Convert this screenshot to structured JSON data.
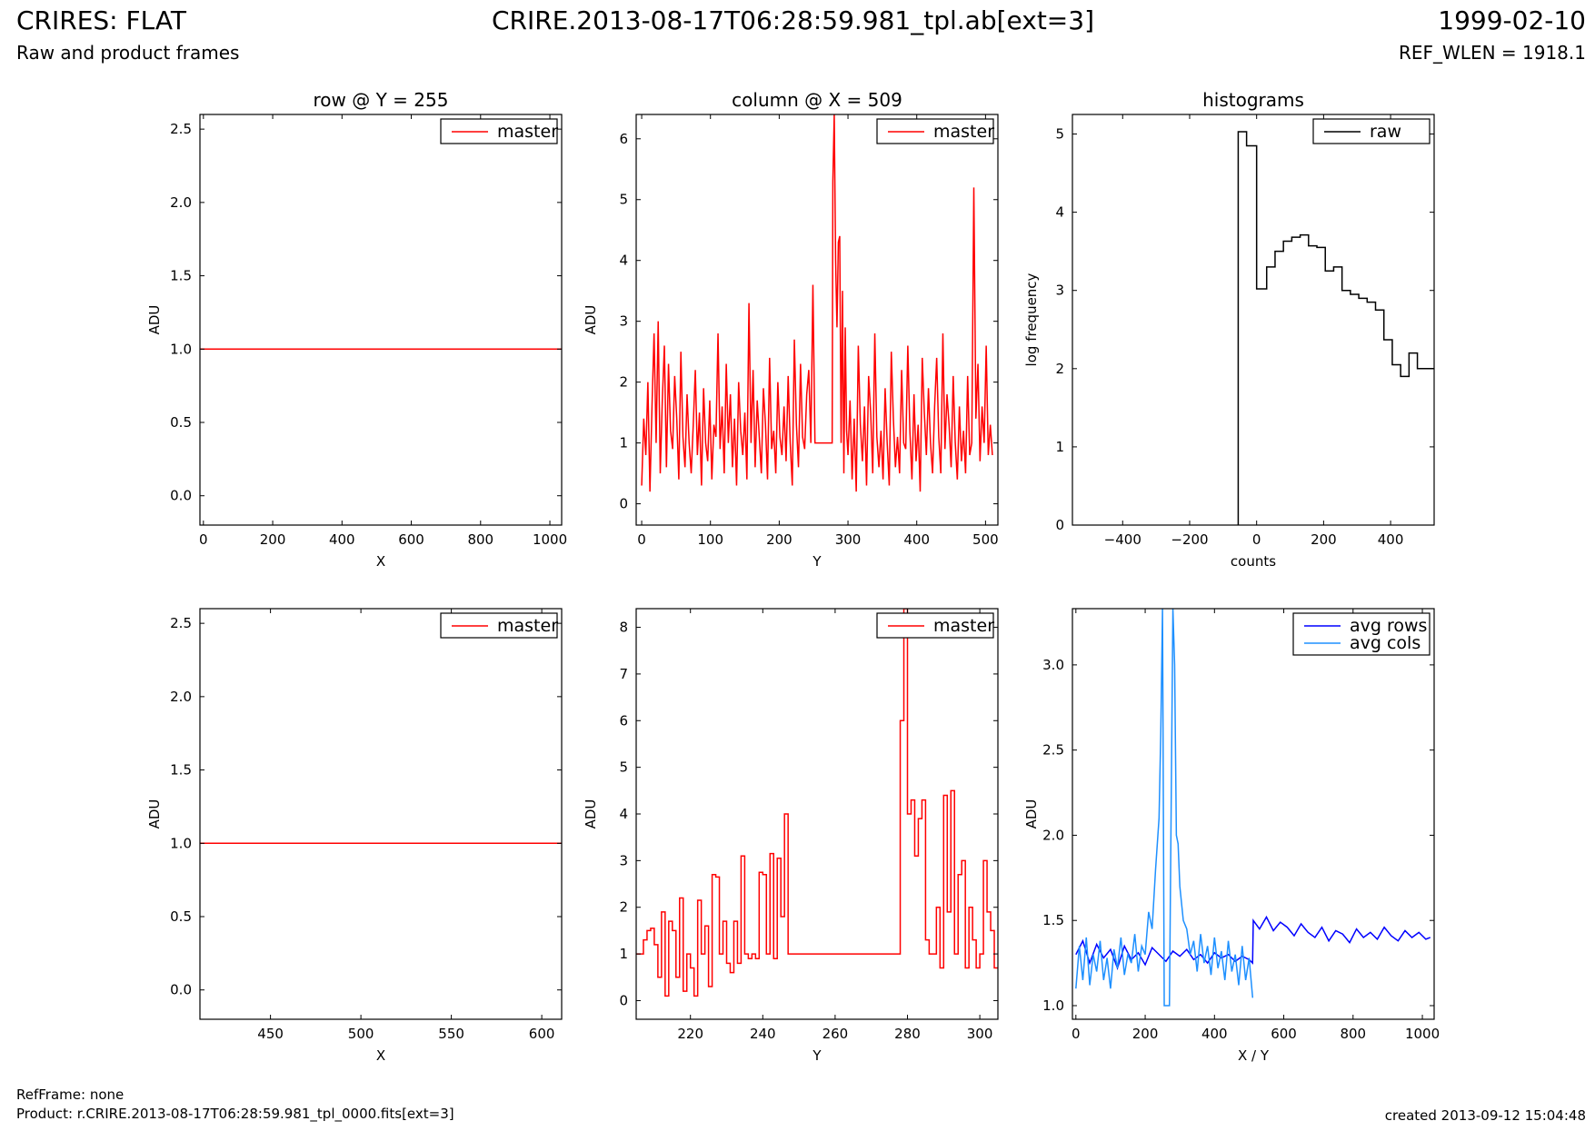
{
  "header": {
    "title": "CRIRES: FLAT",
    "subtitle": "Raw and product frames",
    "file": "CRIRE.2013-08-17T06:28:59.981_tpl.ab[ext=3]",
    "date": "1999-02-10",
    "ref_wlen": "REF_WLEN = 1918.1"
  },
  "footer": {
    "ref_frame": "RefFrame: none",
    "product": "Product: r.CRIRE.2013-08-17T06:28:59.981_tpl_0000.fits[ext=3]",
    "created": "created 2013-09-12 15:04:48"
  },
  "colors": {
    "master": "#ff0000",
    "raw": "#000000",
    "avg_rows": "#0000ff",
    "avg_cols": "#1e90ff"
  },
  "chart_data": [
    {
      "type": "line",
      "title": "row @ Y = 255",
      "xlabel": "X",
      "ylabel": "ADU",
      "xlim": [
        -10,
        1034
      ],
      "ylim": [
        -0.2,
        2.6
      ],
      "xticks": [
        0,
        200,
        400,
        600,
        800,
        1000
      ],
      "xticklabels": [
        "0",
        "200",
        "400",
        "600",
        "800",
        "1000"
      ],
      "yticks": [
        0.0,
        0.5,
        1.0,
        1.5,
        2.0,
        2.5
      ],
      "yticklabels": [
        "0.0",
        "0.5",
        "1.0",
        "1.5",
        "2.0",
        "2.5"
      ],
      "legend": "top-right",
      "series": [
        {
          "name": "master",
          "color": "#ff0000",
          "x": [
            -10,
            1034
          ],
          "y": [
            1.0,
            1.0
          ]
        }
      ]
    },
    {
      "type": "line",
      "title": "column @ X = 509",
      "xlabel": "Y",
      "ylabel": "ADU",
      "xlim": [
        -8,
        518
      ],
      "ylim": [
        -0.35,
        6.4
      ],
      "xticks": [
        0,
        100,
        200,
        300,
        400,
        500
      ],
      "xticklabels": [
        "0",
        "100",
        "200",
        "300",
        "400",
        "500"
      ],
      "yticks": [
        0,
        1,
        2,
        3,
        4,
        5,
        6
      ],
      "yticklabels": [
        "0",
        "1",
        "2",
        "3",
        "4",
        "5",
        "6"
      ],
      "legend": "top-right",
      "series": [
        {
          "name": "master",
          "color": "#ff0000",
          "x": [
            0,
            3,
            6,
            9,
            12,
            15,
            18,
            21,
            24,
            27,
            30,
            33,
            36,
            39,
            42,
            45,
            48,
            51,
            54,
            57,
            60,
            63,
            66,
            69,
            72,
            75,
            78,
            81,
            84,
            87,
            90,
            93,
            96,
            99,
            102,
            105,
            108,
            111,
            114,
            117,
            120,
            123,
            126,
            129,
            132,
            135,
            138,
            141,
            144,
            147,
            150,
            153,
            156,
            159,
            162,
            165,
            168,
            171,
            174,
            177,
            180,
            183,
            186,
            189,
            192,
            195,
            198,
            201,
            204,
            207,
            210,
            213,
            216,
            219,
            222,
            225,
            228,
            231,
            234,
            237,
            240,
            243,
            246,
            249,
            252,
            260,
            270,
            277,
            278,
            280,
            282,
            284,
            286,
            288,
            290,
            292,
            294,
            296,
            298,
            300,
            303,
            306,
            309,
            312,
            315,
            318,
            321,
            324,
            327,
            330,
            333,
            336,
            339,
            342,
            345,
            348,
            351,
            354,
            357,
            360,
            363,
            366,
            369,
            372,
            375,
            378,
            381,
            384,
            387,
            390,
            393,
            396,
            399,
            402,
            405,
            408,
            411,
            414,
            417,
            420,
            423,
            426,
            429,
            432,
            435,
            438,
            441,
            444,
            447,
            450,
            453,
            456,
            459,
            462,
            465,
            468,
            471,
            474,
            477,
            480,
            483,
            486,
            489,
            492,
            495,
            498,
            501,
            504,
            507,
            510
          ],
          "y": [
            0.3,
            1.4,
            0.8,
            2.0,
            0.2,
            1.6,
            2.8,
            1.0,
            3.0,
            0.5,
            1.7,
            2.6,
            0.6,
            2.3,
            1.2,
            0.9,
            2.1,
            1.4,
            0.4,
            2.5,
            1.1,
            0.6,
            1.8,
            1.0,
            0.5,
            1.3,
            2.2,
            0.8,
            1.5,
            0.3,
            1.9,
            1.0,
            0.7,
            1.7,
            0.4,
            1.3,
            1.1,
            2.8,
            0.9,
            1.6,
            0.5,
            2.3,
            1.0,
            1.8,
            0.6,
            1.4,
            0.3,
            2.0,
            1.2,
            0.8,
            1.5,
            0.4,
            3.3,
            1.0,
            2.2,
            0.6,
            1.7,
            1.1,
            0.5,
            1.9,
            1.3,
            0.4,
            2.4,
            0.9,
            1.2,
            0.5,
            2.0,
            1.1,
            0.8,
            1.6,
            0.7,
            2.1,
            1.0,
            0.3,
            2.7,
            1.3,
            0.6,
            2.3,
            1.1,
            0.9,
            1.8,
            2.2,
            1.0,
            3.6,
            1.0,
            1.0,
            1.0,
            1.0,
            5.3,
            6.4,
            4.0,
            2.9,
            4.3,
            4.4,
            1.0,
            3.5,
            0.5,
            2.9,
            1.2,
            0.8,
            1.7,
            0.4,
            1.4,
            0.2,
            2.6,
            1.3,
            0.7,
            1.6,
            0.3,
            2.1,
            1.5,
            0.5,
            2.8,
            1.1,
            0.6,
            1.2,
            0.4,
            1.9,
            1.0,
            0.3,
            2.5,
            1.4,
            0.6,
            1.1,
            0.5,
            2.2,
            1.0,
            0.9,
            2.6,
            1.2,
            0.4,
            1.8,
            0.7,
            1.3,
            0.2,
            2.4,
            1.5,
            0.8,
            1.9,
            1.0,
            0.5,
            1.6,
            2.4,
            1.1,
            0.5,
            2.8,
            0.9,
            1.8,
            1.3,
            0.6,
            2.1,
            1.0,
            0.4,
            1.6,
            0.7,
            1.2,
            0.5,
            2.1,
            0.8,
            1.0,
            5.2,
            1.4,
            2.3,
            0.7,
            1.6,
            1.0,
            2.6,
            0.8,
            1.3,
            0.8
          ]
        }
      ]
    },
    {
      "type": "line",
      "title": "histograms",
      "xlabel": "counts",
      "ylabel": "log frequency",
      "xlim": [
        -550,
        530
      ],
      "ylim": [
        0,
        5.25
      ],
      "xticks": [
        -400,
        -200,
        0,
        200,
        400
      ],
      "xticklabels": [
        "−400",
        "−200",
        "0",
        "200",
        "400"
      ],
      "yticks": [
        0,
        1,
        2,
        3,
        4,
        5
      ],
      "yticklabels": [
        "0",
        "1",
        "2",
        "3",
        "4",
        "5"
      ],
      "legend": "top-right",
      "series": [
        {
          "name": "raw",
          "color": "#000000",
          "x": [
            -55,
            -55,
            -30,
            -30,
            0,
            0,
            30,
            30,
            55,
            55,
            80,
            80,
            105,
            105,
            130,
            130,
            155,
            155,
            180,
            180,
            205,
            205,
            230,
            230,
            255,
            255,
            280,
            280,
            305,
            305,
            330,
            330,
            355,
            355,
            380,
            380,
            405,
            405,
            430,
            430,
            455,
            455,
            480,
            480,
            505,
            505,
            530
          ],
          "y": [
            0,
            5.03,
            5.03,
            4.85,
            4.85,
            3.02,
            3.02,
            3.3,
            3.3,
            3.5,
            3.5,
            3.63,
            3.63,
            3.68,
            3.68,
            3.71,
            3.71,
            3.57,
            3.57,
            3.55,
            3.55,
            3.25,
            3.25,
            3.3,
            3.3,
            3.0,
            3.0,
            2.95,
            2.95,
            2.9,
            2.9,
            2.85,
            2.85,
            2.75,
            2.75,
            2.37,
            2.37,
            2.05,
            2.05,
            1.9,
            1.9,
            2.2,
            2.2,
            2.0,
            2.0,
            2.0,
            2.0
          ]
        }
      ]
    },
    {
      "type": "line",
      "title": "",
      "xlabel": "X",
      "ylabel": "ADU",
      "xlim": [
        411,
        611
      ],
      "ylim": [
        -0.2,
        2.6
      ],
      "xticks": [
        450,
        500,
        550,
        600
      ],
      "xticklabels": [
        "450",
        "500",
        "550",
        "600"
      ],
      "yticks": [
        0.0,
        0.5,
        1.0,
        1.5,
        2.0,
        2.5
      ],
      "yticklabels": [
        "0.0",
        "0.5",
        "1.0",
        "1.5",
        "2.0",
        "2.5"
      ],
      "legend": "top-right",
      "series": [
        {
          "name": "master",
          "color": "#ff0000",
          "x": [
            411,
            611
          ],
          "y": [
            1.0,
            1.0
          ]
        }
      ]
    },
    {
      "type": "line",
      "title": "",
      "xlabel": "Y",
      "ylabel": "ADU",
      "xlim": [
        205,
        305
      ],
      "ylim": [
        -0.4,
        8.4
      ],
      "xticks": [
        220,
        240,
        260,
        280,
        300
      ],
      "xticklabels": [
        "220",
        "240",
        "260",
        "280",
        "300"
      ],
      "yticks": [
        0,
        1,
        2,
        3,
        4,
        5,
        6,
        7,
        8
      ],
      "yticklabels": [
        "0",
        "1",
        "2",
        "3",
        "4",
        "5",
        "6",
        "7",
        "8"
      ],
      "legend": "top-right",
      "series": [
        {
          "name": "master",
          "color": "#ff0000",
          "step": true,
          "x": [
            205,
            207,
            208,
            209,
            210,
            211,
            212,
            213,
            214,
            215,
            216,
            217,
            218,
            219,
            220,
            221,
            222,
            223,
            224,
            225,
            226,
            227,
            228,
            229,
            230,
            231,
            232,
            233,
            234,
            235,
            236,
            237,
            238,
            239,
            240,
            241,
            242,
            243,
            244,
            245,
            246,
            247,
            248,
            250,
            260,
            270,
            278,
            279,
            280,
            281,
            282,
            283,
            284,
            285,
            286,
            287,
            288,
            289,
            290,
            291,
            292,
            293,
            294,
            295,
            296,
            297,
            298,
            299,
            300,
            301,
            302,
            303,
            304,
            305
          ],
          "y": [
            1.0,
            1.3,
            1.5,
            1.55,
            1.2,
            0.5,
            1.9,
            0.1,
            1.7,
            1.5,
            0.5,
            2.2,
            0.2,
            1.0,
            0.7,
            0.1,
            2.15,
            1.0,
            1.6,
            0.3,
            2.7,
            2.65,
            1.0,
            1.7,
            0.8,
            0.6,
            1.7,
            0.8,
            3.1,
            1.0,
            0.9,
            1.0,
            0.9,
            2.75,
            2.7,
            1.0,
            3.15,
            0.9,
            3.05,
            1.8,
            4.0,
            1.0,
            1.0,
            1.0,
            1.0,
            1.0,
            6.0,
            8.4,
            4.0,
            4.3,
            3.1,
            3.9,
            4.3,
            1.3,
            1.0,
            1.0,
            2.0,
            0.7,
            4.4,
            1.9,
            4.5,
            1.0,
            2.7,
            3.0,
            0.7,
            2.0,
            1.3,
            0.7,
            1.0,
            3.0,
            1.9,
            1.5,
            0.7,
            0.7
          ]
        }
      ]
    },
    {
      "type": "line",
      "title": "",
      "xlabel": "X / Y",
      "ylabel": "ADU",
      "xlim": [
        -10,
        1034
      ],
      "ylim": [
        0.92,
        3.33
      ],
      "xticks": [
        0,
        200,
        400,
        600,
        800,
        1000
      ],
      "xticklabels": [
        "0",
        "200",
        "400",
        "600",
        "800",
        "1000"
      ],
      "yticks": [
        1.0,
        1.5,
        2.0,
        2.5,
        3.0
      ],
      "yticklabels": [
        "1.0",
        "1.5",
        "2.0",
        "2.5",
        "3.0"
      ],
      "legend": "top-right",
      "series": [
        {
          "name": "avg rows",
          "color": "#0000ff",
          "x": [
            0,
            20,
            40,
            60,
            80,
            100,
            120,
            140,
            160,
            180,
            200,
            220,
            240,
            260,
            280,
            300,
            320,
            340,
            360,
            380,
            400,
            420,
            440,
            460,
            480,
            500,
            510,
            512,
            530,
            550,
            570,
            590,
            610,
            630,
            650,
            670,
            690,
            710,
            730,
            750,
            770,
            790,
            810,
            830,
            850,
            870,
            890,
            910,
            930,
            950,
            970,
            990,
            1010,
            1023
          ],
          "y": [
            1.3,
            1.38,
            1.25,
            1.36,
            1.28,
            1.33,
            1.22,
            1.35,
            1.27,
            1.31,
            1.24,
            1.34,
            1.3,
            1.26,
            1.32,
            1.29,
            1.33,
            1.27,
            1.3,
            1.25,
            1.31,
            1.28,
            1.3,
            1.26,
            1.29,
            1.27,
            1.25,
            1.5,
            1.45,
            1.52,
            1.44,
            1.49,
            1.46,
            1.41,
            1.48,
            1.43,
            1.4,
            1.46,
            1.38,
            1.44,
            1.42,
            1.37,
            1.45,
            1.4,
            1.43,
            1.39,
            1.46,
            1.41,
            1.38,
            1.44,
            1.4,
            1.43,
            1.39,
            1.4
          ]
        },
        {
          "name": "avg cols",
          "color": "#1e90ff",
          "x": [
            0,
            10,
            20,
            30,
            40,
            50,
            60,
            70,
            80,
            90,
            100,
            110,
            120,
            130,
            140,
            150,
            160,
            170,
            180,
            190,
            200,
            210,
            220,
            230,
            240,
            245,
            250,
            255,
            260,
            270,
            280,
            285,
            290,
            295,
            300,
            305,
            310,
            320,
            330,
            340,
            350,
            360,
            370,
            380,
            390,
            400,
            410,
            420,
            430,
            440,
            450,
            460,
            470,
            480,
            490,
            500,
            510,
            512
          ],
          "y": [
            1.1,
            1.35,
            1.15,
            1.4,
            1.12,
            1.3,
            1.2,
            1.38,
            1.15,
            1.28,
            1.1,
            1.33,
            1.22,
            1.4,
            1.18,
            1.3,
            1.25,
            1.42,
            1.2,
            1.35,
            1.3,
            1.55,
            1.45,
            1.8,
            2.1,
            2.6,
            3.33,
            1.0,
            1.0,
            1.0,
            3.33,
            3.0,
            2.0,
            1.95,
            1.7,
            1.6,
            1.5,
            1.45,
            1.3,
            1.38,
            1.2,
            1.42,
            1.25,
            1.35,
            1.18,
            1.4,
            1.22,
            1.32,
            1.15,
            1.38,
            1.2,
            1.3,
            1.12,
            1.35,
            1.15,
            1.28,
            1.05,
            1.05
          ]
        }
      ]
    }
  ]
}
